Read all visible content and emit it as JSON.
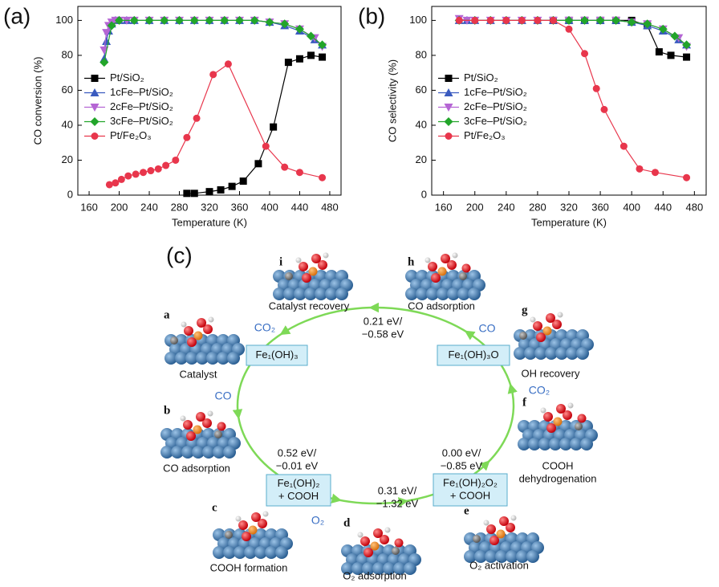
{
  "chart_data": [
    {
      "type": "line",
      "panel_label": "(a)",
      "x_label": "Temperature (K)",
      "y_label": "CO conversion (%)",
      "xlim": [
        145,
        495
      ],
      "xticks": [
        160,
        200,
        240,
        280,
        320,
        360,
        400,
        440,
        480
      ],
      "ylim": [
        0,
        108
      ],
      "yticks": [
        0,
        20,
        40,
        60,
        80,
        100
      ],
      "grid": false,
      "legend": "center left",
      "series": [
        {
          "name": "Pt/SiO₂",
          "color": "#000000",
          "marker": "square",
          "x": [
            290,
            300,
            320,
            335,
            350,
            365,
            385,
            405,
            425,
            440,
            455,
            470
          ],
          "values": [
            1,
            1,
            2,
            3,
            5,
            8,
            18,
            39,
            76,
            78,
            80,
            79
          ]
        },
        {
          "name": "1cFe–Pt/SiO₂",
          "color": "#3a5bbf",
          "marker": "triangle-up",
          "x": [
            180,
            183,
            186,
            190,
            195,
            200,
            210,
            220,
            240,
            260,
            280,
            300,
            320,
            340,
            360,
            380,
            400,
            420,
            440,
            460,
            470
          ],
          "values": [
            78,
            88,
            94,
            98,
            100,
            100,
            100,
            100,
            100,
            100,
            100,
            100,
            100,
            100,
            100,
            100,
            99,
            97,
            94,
            89,
            86
          ]
        },
        {
          "name": "2cFe–Pt/SiO₂",
          "color": "#b565d4",
          "marker": "triangle-down",
          "x": [
            180,
            183,
            186,
            190,
            195,
            200,
            210,
            220,
            240,
            260,
            280,
            300,
            320,
            340,
            360,
            380,
            400,
            420,
            440,
            460,
            470
          ],
          "values": [
            83,
            93,
            97,
            99,
            100,
            100,
            100,
            100,
            100,
            100,
            100,
            100,
            100,
            100,
            100,
            100,
            99,
            98,
            95,
            90,
            85
          ]
        },
        {
          "name": "3cFe–Pt/SiO₂",
          "color": "#22a52a",
          "marker": "diamond",
          "x": [
            180,
            190,
            200,
            220,
            240,
            260,
            280,
            300,
            320,
            340,
            360,
            380,
            400,
            420,
            440,
            455,
            470
          ],
          "values": [
            76,
            97,
            100,
            100,
            100,
            100,
            100,
            100,
            100,
            100,
            100,
            100,
            99,
            98,
            95,
            91,
            86
          ]
        },
        {
          "name": "Pt/Fe₂O₃",
          "color": "#e8364c",
          "marker": "circle",
          "x": [
            187,
            195,
            203,
            212,
            222,
            232,
            242,
            252,
            262,
            275,
            290,
            303,
            325,
            345,
            395,
            420,
            440,
            470
          ],
          "values": [
            6,
            7,
            9,
            11,
            12,
            13,
            14,
            15,
            17,
            20,
            33,
            44,
            69,
            75,
            28,
            16,
            13,
            10
          ]
        }
      ]
    },
    {
      "type": "line",
      "panel_label": "(b)",
      "x_label": "Temperature (K)",
      "y_label": "CO selectivity (%)",
      "xlim": [
        145,
        495
      ],
      "xticks": [
        160,
        200,
        240,
        280,
        320,
        360,
        400,
        440,
        480
      ],
      "ylim": [
        0,
        108
      ],
      "yticks": [
        0,
        20,
        40,
        60,
        80,
        100
      ],
      "grid": false,
      "legend": "center left",
      "series": [
        {
          "name": "Pt/SiO₂",
          "color": "#000000",
          "marker": "square",
          "x": [
            300,
            320,
            340,
            360,
            380,
            400,
            420,
            435,
            450,
            470
          ],
          "values": [
            100,
            100,
            100,
            100,
            100,
            100,
            97,
            82,
            80,
            79
          ]
        },
        {
          "name": "1cFe–Pt/SiO₂",
          "color": "#3a5bbf",
          "marker": "triangle-up",
          "x": [
            180,
            190,
            200,
            220,
            240,
            260,
            280,
            300,
            320,
            340,
            360,
            380,
            400,
            420,
            440,
            460,
            470
          ],
          "values": [
            100,
            100,
            100,
            100,
            100,
            100,
            100,
            100,
            100,
            100,
            100,
            100,
            99,
            97,
            94,
            89,
            86
          ]
        },
        {
          "name": "2cFe–Pt/SiO₂",
          "color": "#b565d4",
          "marker": "triangle-down",
          "x": [
            180,
            190,
            200,
            220,
            240,
            260,
            280,
            300,
            320,
            340,
            360,
            380,
            400,
            420,
            440,
            460,
            470
          ],
          "values": [
            101,
            100,
            100,
            100,
            100,
            100,
            100,
            100,
            100,
            100,
            100,
            100,
            99,
            98,
            95,
            90,
            85
          ]
        },
        {
          "name": "3cFe–Pt/SiO₂",
          "color": "#22a52a",
          "marker": "diamond",
          "x": [
            180,
            200,
            220,
            240,
            260,
            280,
            300,
            320,
            340,
            360,
            380,
            400,
            420,
            440,
            455,
            470
          ],
          "values": [
            100,
            100,
            100,
            100,
            100,
            100,
            100,
            100,
            100,
            100,
            100,
            99,
            98,
            95,
            91,
            86
          ]
        },
        {
          "name": "Pt/Fe₂O₃",
          "color": "#e8364c",
          "marker": "circle",
          "x": [
            180,
            200,
            220,
            240,
            260,
            280,
            300,
            320,
            340,
            355,
            365,
            390,
            410,
            430,
            470
          ],
          "values": [
            100,
            100,
            100,
            100,
            100,
            100,
            100,
            95,
            81,
            61,
            49,
            28,
            15,
            13,
            10
          ]
        }
      ]
    }
  ],
  "diagram": {
    "panel_label": "(c)",
    "states": [
      {
        "letter": "a",
        "label": [
          "Catalyst"
        ]
      },
      {
        "letter": "b",
        "label": [
          "CO adsorption"
        ]
      },
      {
        "letter": "c",
        "label": [
          "COOH formation"
        ]
      },
      {
        "letter": "d",
        "label": [
          "O₂ adsorption"
        ]
      },
      {
        "letter": "e",
        "label": [
          "O₂ activation"
        ]
      },
      {
        "letter": "f",
        "label": [
          "COOH",
          "dehydrogenation"
        ]
      },
      {
        "letter": "g",
        "label": [
          "OH recovery"
        ]
      },
      {
        "letter": "h",
        "label": [
          "CO adsorption"
        ]
      },
      {
        "letter": "i",
        "label": [
          "Catalyst recovery"
        ]
      }
    ],
    "intermediates": [
      {
        "lines": [
          "Fe₁(OH)₃"
        ]
      },
      {
        "lines": [
          "Fe₁(OH)₃O"
        ]
      },
      {
        "lines": [
          "Fe₁(OH)₂",
          "+ COOH"
        ]
      },
      {
        "lines": [
          "Fe₁(OH)₂O₂",
          "+ COOH"
        ]
      }
    ],
    "energies": [
      {
        "lines": [
          "0.21 eV/",
          "−0.58 eV"
        ]
      },
      {
        "lines": [
          "0.52 eV/",
          "−0.01 eV"
        ]
      },
      {
        "lines": [
          "0.00 eV/",
          "−0.85 eV"
        ]
      },
      {
        "lines": [
          "0.31 eV/",
          "−1.32 eV"
        ]
      }
    ],
    "species": [
      "CO₂",
      "CO",
      "CO",
      "CO₂",
      "O₂"
    ]
  }
}
